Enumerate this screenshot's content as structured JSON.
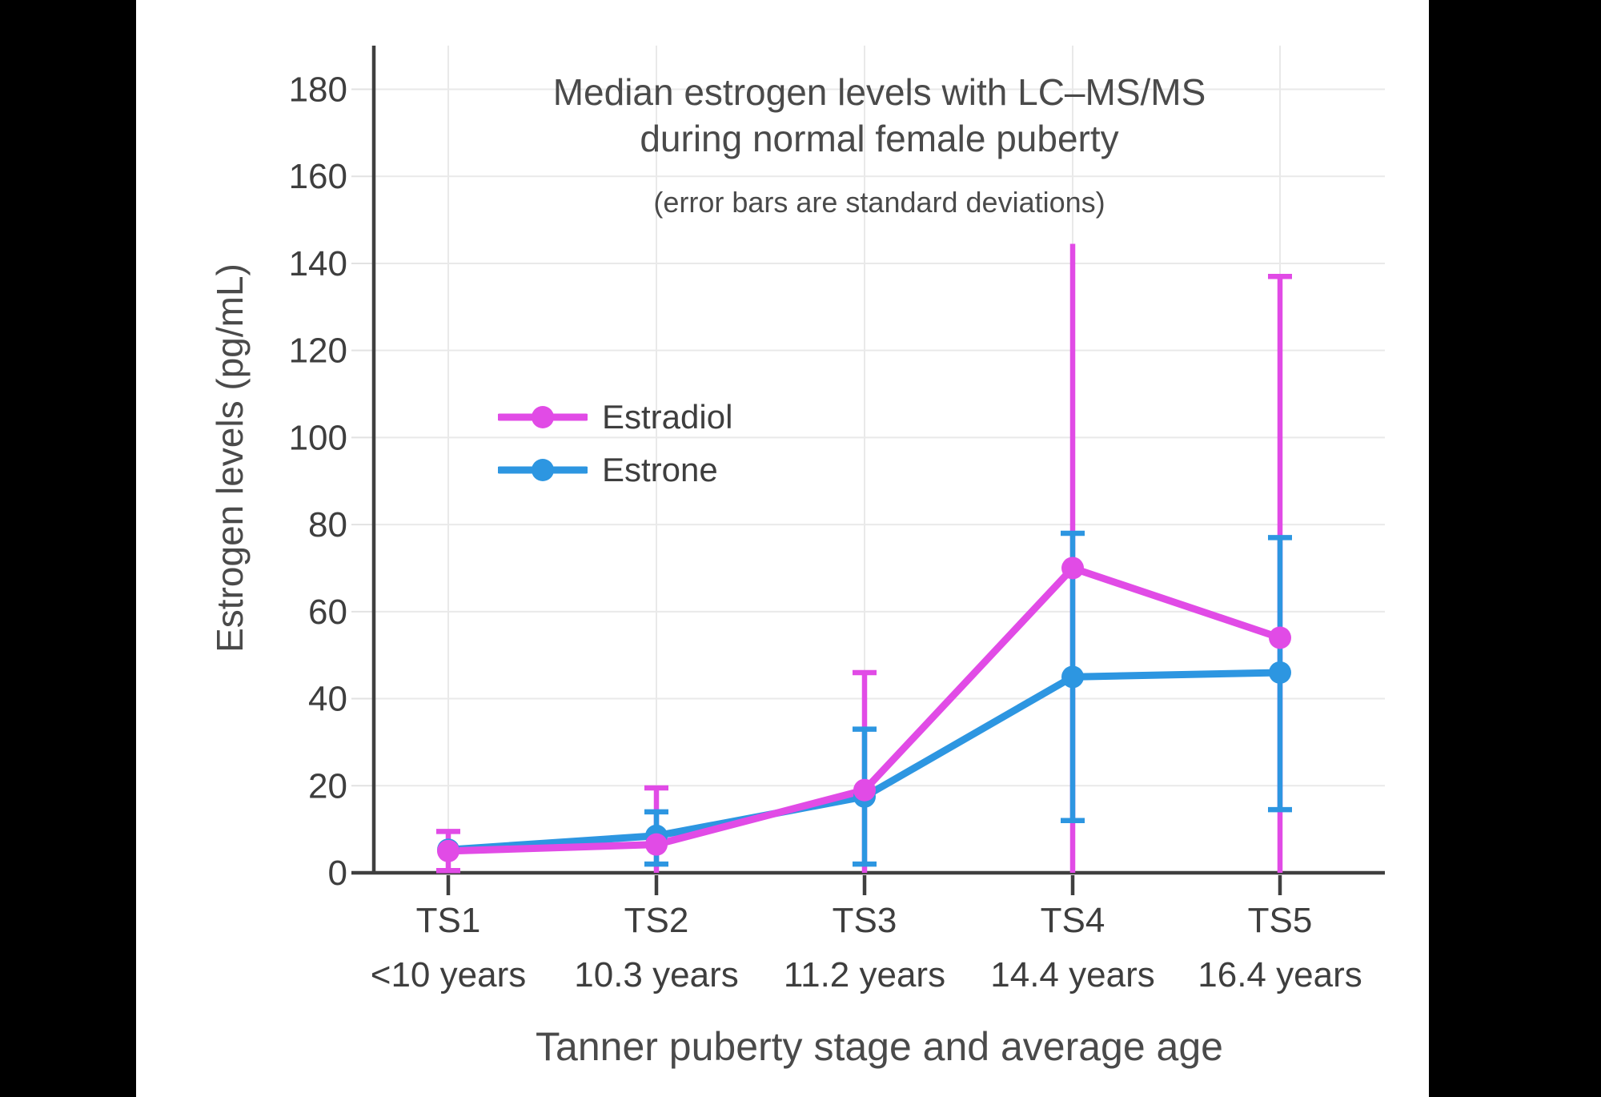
{
  "chart_data": {
    "type": "line",
    "title": "Median estrogen levels with LC–MS/MS",
    "title_line2": "during normal female puberty",
    "subtitle": "(error bars are standard deviations)",
    "xlabel": "Tanner puberty stage and average age",
    "ylabel": "Estrogen levels (pg/mL)",
    "categories": [
      "TS1",
      "TS2",
      "TS3",
      "TS4",
      "TS5"
    ],
    "category_sublabels": [
      "<10 years",
      "10.3 years",
      "11.2 years",
      "14.4 years",
      "16.4 years"
    ],
    "ylim": [
      0,
      190
    ],
    "yticks": [
      0,
      20,
      40,
      60,
      80,
      100,
      120,
      140,
      160,
      180
    ],
    "grid": true,
    "legend_position": "inside-upper-left",
    "error_bar_meaning": "standard deviations",
    "series": [
      {
        "name": "Estradiol",
        "color": "#E14BE6",
        "values": [
          5,
          6.5,
          19,
          70,
          54
        ],
        "error_low": [
          0.5,
          0,
          0,
          0,
          0
        ],
        "error_high": [
          9.5,
          19.5,
          46,
          144.5,
          137
        ],
        "cap_low": [
          true,
          false,
          false,
          false,
          false
        ],
        "cap_high": [
          true,
          true,
          true,
          false,
          true
        ]
      },
      {
        "name": "Estrone",
        "color": "#2D96E1",
        "values": [
          5.3,
          8.5,
          17.5,
          45,
          46
        ],
        "error_low": [
          null,
          2,
          2,
          12,
          14.5
        ],
        "error_high": [
          null,
          14,
          33,
          78,
          77
        ],
        "cap_low": [
          false,
          true,
          true,
          true,
          true
        ],
        "cap_high": [
          false,
          true,
          true,
          true,
          true
        ]
      }
    ]
  },
  "colors": {
    "side_bars": "#000000",
    "background": "#FFFFFF",
    "axis": "#3F3F3F",
    "grid": "#E9E9E9",
    "minor_tick": "#E2E2E2",
    "tick_text": "#3E3E3E",
    "title_text": "#4A4A4A"
  }
}
